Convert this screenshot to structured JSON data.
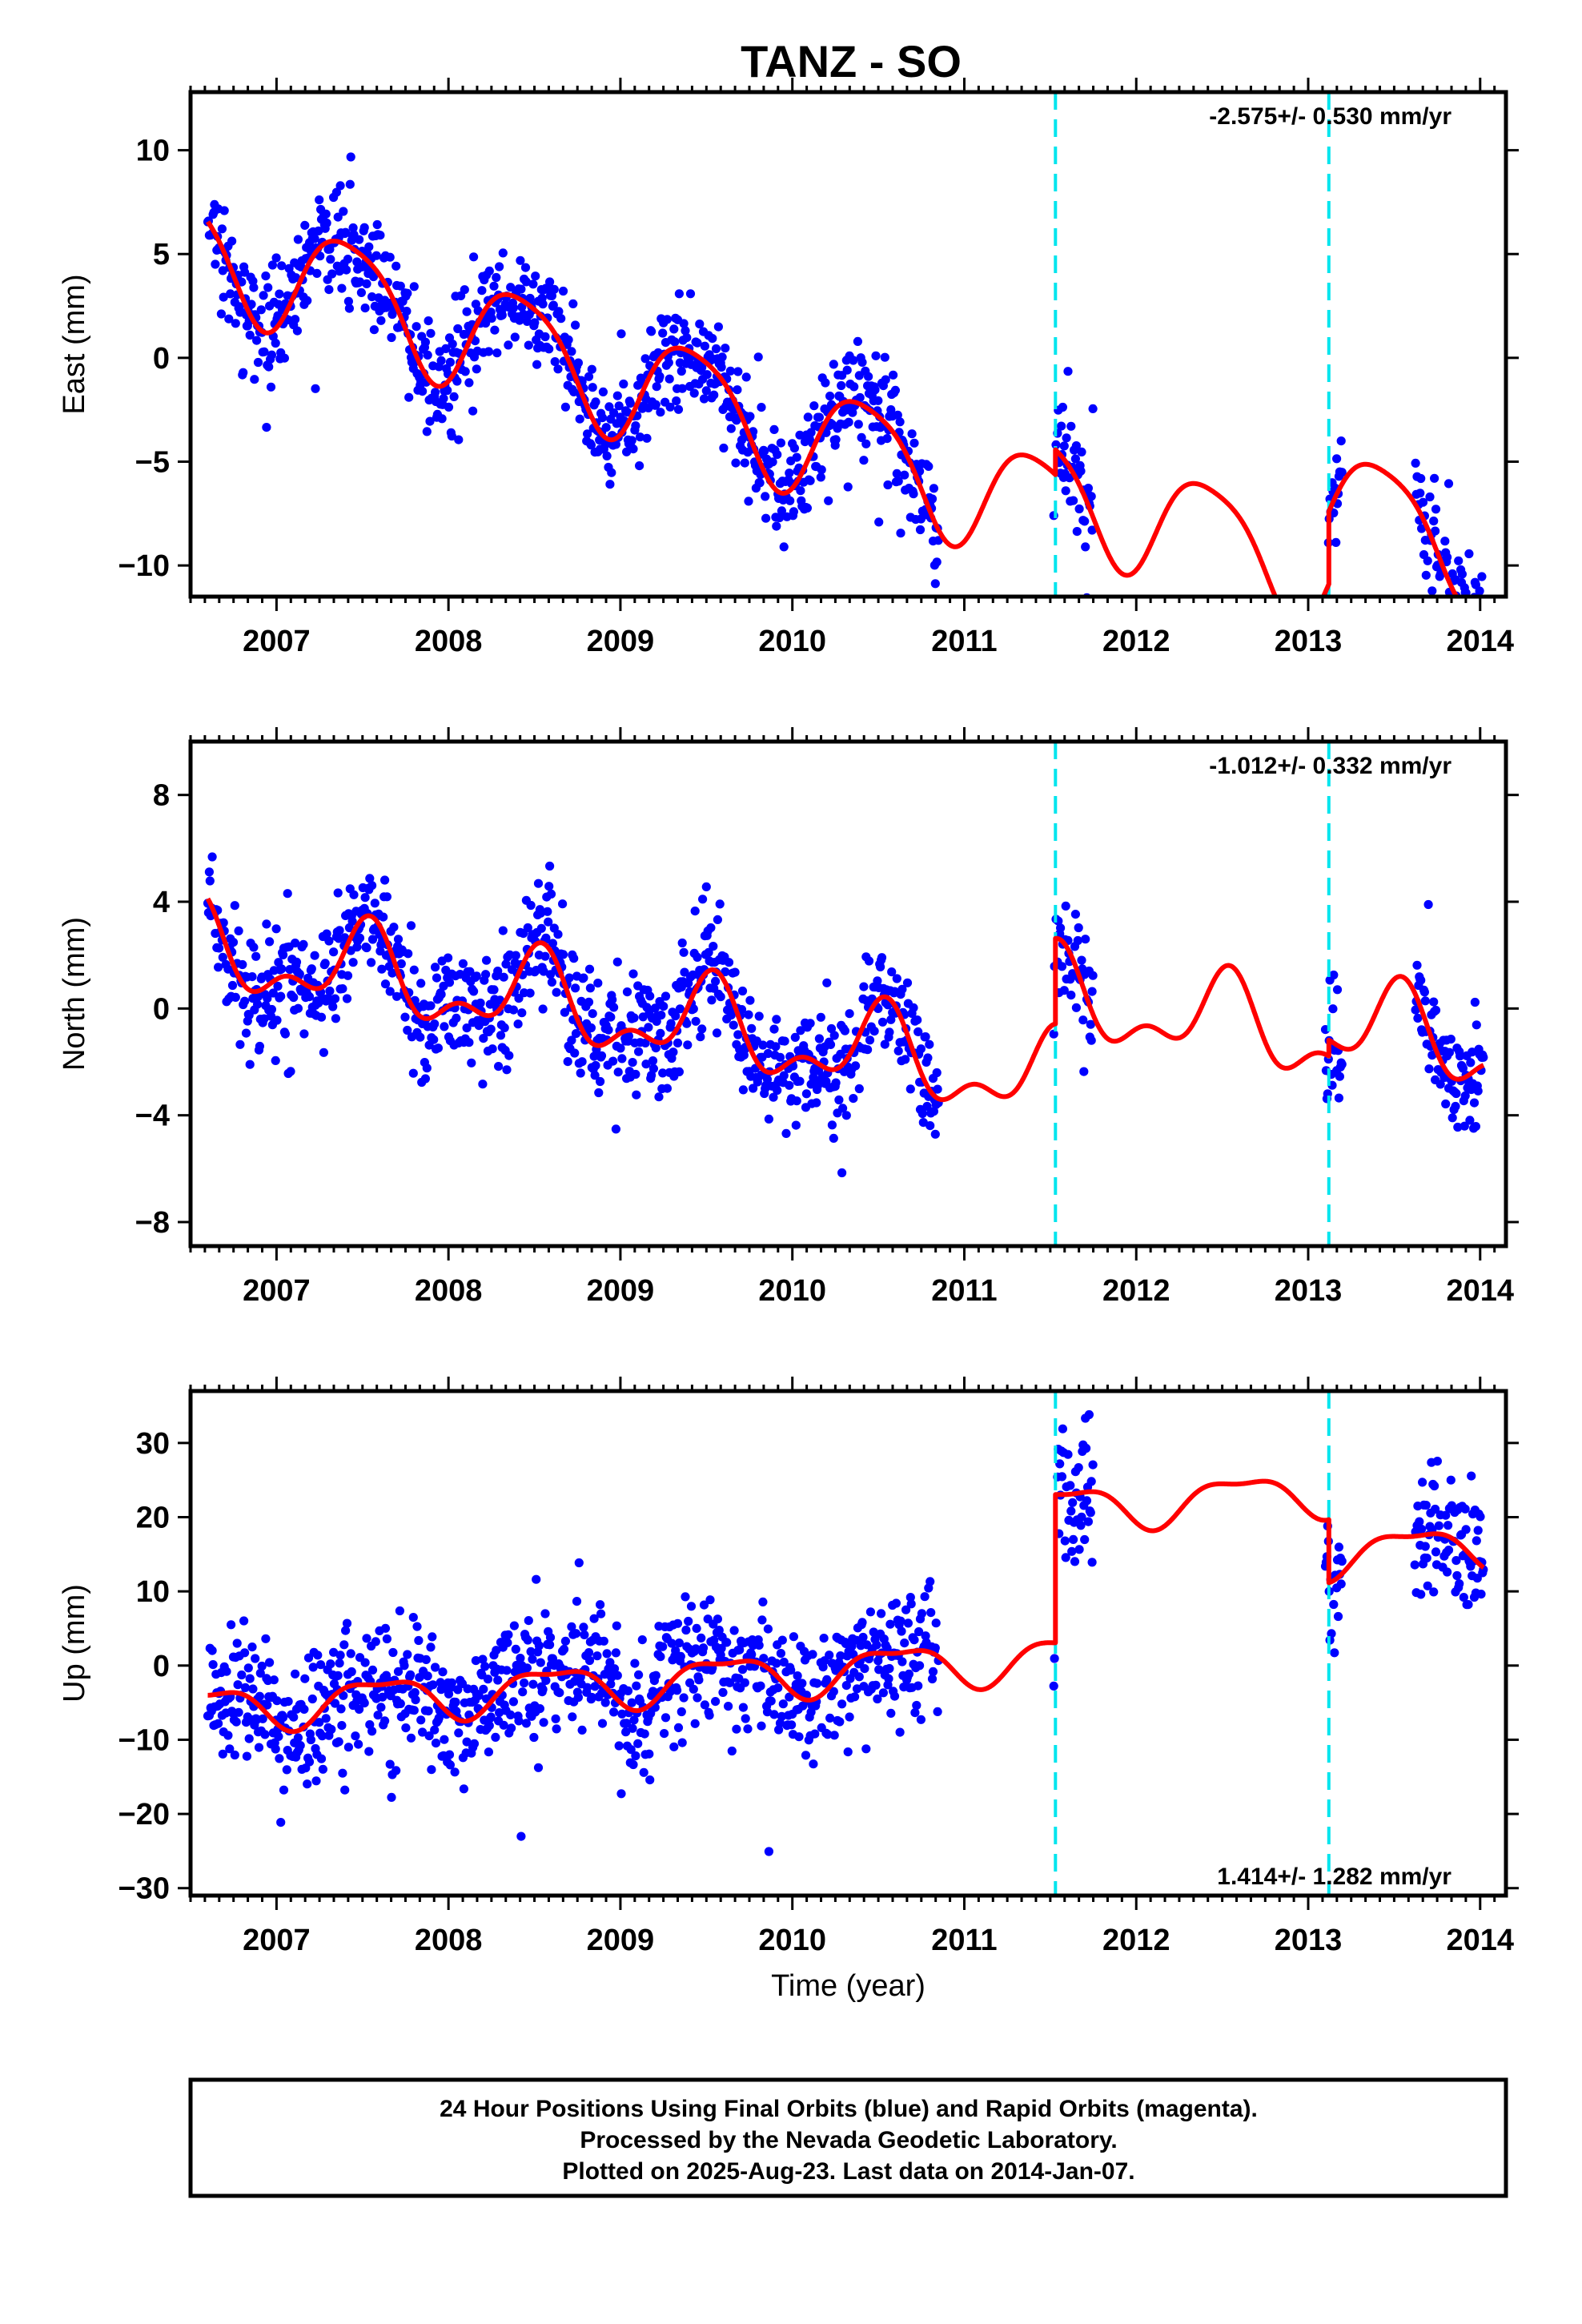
{
  "figure": {
    "title": "TANZ - SO",
    "footer_lines": [
      "24 Hour Positions Using Final Orbits (blue) and Rapid Orbits (magenta).",
      "Processed by the Nevada Geodetic Laboratory.",
      "Plotted on 2025-Aug-23. Last data on 2014-Jan-07."
    ]
  },
  "colors": {
    "points": "#0000ff",
    "model": "#ff0000",
    "offsets": "#00e5ee",
    "frame": "#000000"
  },
  "chart_data": [
    {
      "type": "scatter",
      "panel": "east",
      "ylabel": "East (mm)",
      "xlabel": "",
      "xlim": [
        2006.5,
        2014.15
      ],
      "ylim": [
        -11.5,
        12.8
      ],
      "xticks": [
        2007,
        2008,
        2009,
        2010,
        2011,
        2012,
        2013,
        2014
      ],
      "xtick_labels": [
        "2007",
        "2008",
        "2009",
        "2010",
        "2011",
        "2012",
        "2013",
        "2014"
      ],
      "yticks": [
        -10,
        -5,
        0,
        5,
        10
      ],
      "ytick_labels": [
        "−10",
        "−5",
        "0",
        "5",
        "10"
      ],
      "rate_label": "-2.575+/- 0.530 mm/yr",
      "rate_position": "top-right",
      "offsets_x": [
        2011.53,
        2013.12
      ],
      "data_segments": [
        [
          2006.6,
          2010.85
        ],
        [
          2011.52,
          2011.75
        ],
        [
          2013.1,
          2013.2
        ],
        [
          2013.62,
          2014.02
        ]
      ],
      "trend": {
        "t0": 2010.0,
        "a": -3.5,
        "b": -2.575,
        "annual_amp": 2.7,
        "annual_phase": 2010.42,
        "semi_amp": 0.5,
        "semi_phase": 2010.2,
        "steps": [
          [
            2011.53,
            1.2
          ],
          [
            2013.12,
            3.5
          ]
        ]
      },
      "scatter_sd": 1.3
    },
    {
      "type": "scatter",
      "panel": "north",
      "ylabel": "North (mm)",
      "xlabel": "",
      "xlim": [
        2006.5,
        2014.15
      ],
      "ylim": [
        -8.9,
        10.0
      ],
      "xticks": [
        2007,
        2008,
        2009,
        2010,
        2011,
        2012,
        2013,
        2014
      ],
      "xtick_labels": [
        "2007",
        "2008",
        "2009",
        "2010",
        "2011",
        "2012",
        "2013",
        "2014"
      ],
      "yticks": [
        -8,
        -4,
        0,
        4,
        8
      ],
      "ytick_labels": [
        "−8",
        "−4",
        "0",
        "4",
        "8"
      ],
      "rate_label": "-1.012+/- 0.332 mm/yr",
      "rate_position": "top-right",
      "offsets_x": [
        2011.53,
        2013.12
      ],
      "data_segments": [
        [
          2006.6,
          2010.85
        ],
        [
          2011.52,
          2011.75
        ],
        [
          2013.1,
          2013.2
        ],
        [
          2013.62,
          2014.02
        ]
      ],
      "trend": {
        "t0": 2010.0,
        "a": -1.2,
        "b": -1.012,
        "annual_amp": 1.4,
        "annual_phase": 2010.52,
        "semi_amp": 0.8,
        "semi_phase": 2010.55,
        "steps": [
          [
            2011.53,
            3.2
          ],
          [
            2013.12,
            0.6
          ]
        ]
      },
      "scatter_sd": 1.1
    },
    {
      "type": "scatter",
      "panel": "up",
      "ylabel": "Up (mm)",
      "xlabel": "Time (year)",
      "xlim": [
        2006.5,
        2014.15
      ],
      "ylim": [
        -31,
        37
      ],
      "xticks": [
        2007,
        2008,
        2009,
        2010,
        2011,
        2012,
        2013,
        2014
      ],
      "xtick_labels": [
        "2007",
        "2008",
        "2009",
        "2010",
        "2011",
        "2012",
        "2013",
        "2014"
      ],
      "yticks": [
        -30,
        -20,
        -10,
        0,
        10,
        20,
        30
      ],
      "ytick_labels": [
        "−30",
        "−20",
        "−10",
        "0",
        "10",
        "20",
        "30"
      ],
      "rate_label": "1.414+/- 1.282 mm/yr",
      "rate_position": "bottom-right",
      "offsets_x": [
        2011.53,
        2013.12
      ],
      "data_segments": [
        [
          2006.6,
          2010.85
        ],
        [
          2011.52,
          2011.75
        ],
        [
          2013.1,
          2013.2
        ],
        [
          2013.62,
          2014.02
        ]
      ],
      "trend": {
        "t0": 2010.0,
        "a": -1.0,
        "b": 1.414,
        "annual_amp": 2.8,
        "annual_phase": 2010.6,
        "semi_amp": 1.0,
        "semi_phase": 2010.35,
        "steps": [
          [
            2011.53,
            20.0
          ],
          [
            2013.12,
            -8.5
          ]
        ]
      },
      "scatter_sd": 4.5
    }
  ]
}
